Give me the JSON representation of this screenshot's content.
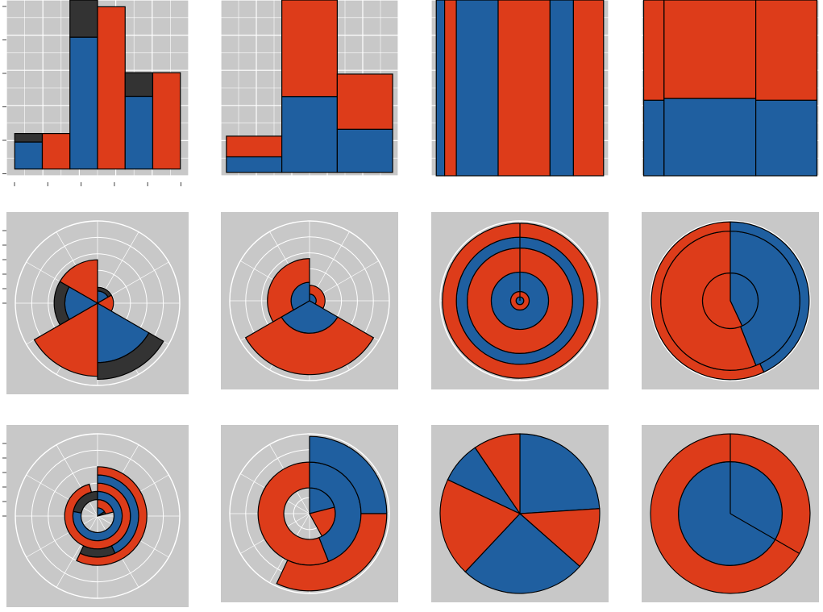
{
  "colors": {
    "red": "#dd3c1a",
    "blue": "#1f5fa0",
    "dark": "#333333",
    "panel": "#c8c8c8",
    "grid": "#ffffff"
  },
  "chart_data": [
    {
      "id": "hist-dodge",
      "type": "bar",
      "position": "dodge",
      "bars": [
        {
          "x0": 0,
          "x1": 1,
          "segs": [
            {
              "c": "blue",
              "v": 0.8
            },
            {
              "c": "dark",
              "v": 0.25
            }
          ]
        },
        {
          "x0": 1,
          "x1": 2,
          "segs": [
            {
              "c": "red",
              "v": 1.05
            }
          ]
        },
        {
          "x0": 2,
          "x1": 3,
          "segs": [
            {
              "c": "blue",
              "v": 3.9
            },
            {
              "c": "dark",
              "v": 1.1
            }
          ]
        },
        {
          "x0": 3,
          "x1": 4,
          "segs": [
            {
              "c": "red",
              "v": 4.8
            }
          ]
        },
        {
          "x0": 4,
          "x1": 5,
          "segs": [
            {
              "c": "blue",
              "v": 2.15
            },
            {
              "c": "dark",
              "v": 0.7
            }
          ]
        },
        {
          "x0": 5,
          "x1": 6,
          "segs": [
            {
              "c": "red",
              "v": 2.85
            }
          ]
        }
      ],
      "xlim": [
        -0.3,
        6.3
      ],
      "ylim": [
        -0.2,
        5.0
      ]
    },
    {
      "id": "hist-stack",
      "type": "bar",
      "position": "stack",
      "bars": [
        {
          "x0": 0,
          "x1": 1,
          "segs": [
            {
              "c": "blue",
              "v": 0.45
            },
            {
              "c": "red",
              "v": 0.6
            }
          ]
        },
        {
          "x0": 1,
          "x1": 2,
          "segs": [
            {
              "c": "blue",
              "v": 2.2
            },
            {
              "c": "red",
              "v": 2.8
            }
          ]
        },
        {
          "x0": 2,
          "x1": 3,
          "segs": [
            {
              "c": "blue",
              "v": 1.25
            },
            {
              "c": "red",
              "v": 1.6
            }
          ]
        }
      ],
      "xlim": [
        -0.1,
        3.1
      ],
      "ylim": [
        -0.1,
        5.0
      ]
    },
    {
      "id": "bar-fill-thin",
      "type": "bar",
      "position": "fill",
      "bars": [
        {
          "x0": 0.0,
          "x1": 0.5,
          "segs": [
            {
              "c": "blue",
              "v": 1
            }
          ]
        },
        {
          "x0": 0.5,
          "x1": 1.2,
          "segs": [
            {
              "c": "red",
              "v": 1
            }
          ]
        },
        {
          "x0": 1.2,
          "x1": 3.7,
          "segs": [
            {
              "c": "blue",
              "v": 1
            }
          ]
        },
        {
          "x0": 3.7,
          "x1": 6.8,
          "segs": [
            {
              "c": "red",
              "v": 1
            }
          ]
        },
        {
          "x0": 6.8,
          "x1": 8.2,
          "segs": [
            {
              "c": "blue",
              "v": 1
            }
          ]
        },
        {
          "x0": 8.2,
          "x1": 10.0,
          "segs": [
            {
              "c": "red",
              "v": 1
            }
          ]
        }
      ],
      "xlim": [
        -0.3,
        10.3
      ],
      "ylim": [
        0,
        1
      ]
    },
    {
      "id": "bar-fill-stack",
      "type": "bar",
      "position": "fill",
      "bars": [
        {
          "x0": 0,
          "x1": 1,
          "segs": [
            {
              "c": "blue",
              "v": 0.43
            },
            {
              "c": "red",
              "v": 0.57
            }
          ]
        },
        {
          "x0": 1,
          "x1": 5.5,
          "segs": [
            {
              "c": "blue",
              "v": 0.44
            },
            {
              "c": "red",
              "v": 0.56
            }
          ]
        },
        {
          "x0": 5.5,
          "x1": 8.5,
          "segs": [
            {
              "c": "blue",
              "v": 0.43
            },
            {
              "c": "red",
              "v": 0.57
            }
          ]
        }
      ],
      "xlim": [
        -0.1,
        8.6
      ],
      "ylim": [
        0,
        1
      ]
    },
    {
      "id": "coxcomb-dodge",
      "type": "pie",
      "rmax": 5.4,
      "wedges": [
        {
          "a0": 0,
          "a1": 0.1667,
          "segs": [
            {
              "c": "blue",
              "v": 0.8
            },
            {
              "c": "dark",
              "v": 0.25
            }
          ]
        },
        {
          "a0": 0.1667,
          "a1": 0.3333,
          "segs": [
            {
              "c": "red",
              "v": 1.05
            }
          ]
        },
        {
          "a0": 0.3333,
          "a1": 0.5,
          "segs": [
            {
              "c": "blue",
              "v": 3.9
            },
            {
              "c": "dark",
              "v": 1.1
            }
          ]
        },
        {
          "a0": 0.5,
          "a1": 0.6667,
          "segs": [
            {
              "c": "red",
              "v": 4.8
            }
          ]
        },
        {
          "a0": 0.6667,
          "a1": 0.8333,
          "segs": [
            {
              "c": "blue",
              "v": 2.15
            },
            {
              "c": "dark",
              "v": 0.7
            }
          ]
        },
        {
          "a0": 0.8333,
          "a1": 1.0,
          "segs": [
            {
              "c": "red",
              "v": 2.85
            }
          ]
        }
      ]
    },
    {
      "id": "coxcomb-stack",
      "type": "pie",
      "rmax": 5.4,
      "wedges": [
        {
          "a0": 0,
          "a1": 0.3333,
          "segs": [
            {
              "c": "blue",
              "v": 0.45
            },
            {
              "c": "red",
              "v": 0.6
            }
          ]
        },
        {
          "a0": 0.3333,
          "a1": 0.6667,
          "segs": [
            {
              "c": "blue",
              "v": 2.2
            },
            {
              "c": "red",
              "v": 2.8
            }
          ]
        },
        {
          "a0": 0.6667,
          "a1": 1.0,
          "segs": [
            {
              "c": "blue",
              "v": 1.25
            },
            {
              "c": "red",
              "v": 1.6
            }
          ]
        }
      ]
    },
    {
      "id": "bullseye-thin",
      "type": "pie",
      "rmax": 10.3,
      "dividers": "single",
      "rings": [
        {
          "r0": 0.0,
          "r1": 0.5,
          "segs": [
            {
              "c": "blue",
              "v": 1
            }
          ]
        },
        {
          "r0": 0.5,
          "r1": 1.2,
          "segs": [
            {
              "c": "red",
              "v": 1
            }
          ]
        },
        {
          "r0": 1.2,
          "r1": 3.7,
          "segs": [
            {
              "c": "blue",
              "v": 1
            }
          ]
        },
        {
          "r0": 3.7,
          "r1": 6.8,
          "segs": [
            {
              "c": "red",
              "v": 1
            }
          ]
        },
        {
          "r0": 6.8,
          "r1": 8.2,
          "segs": [
            {
              "c": "blue",
              "v": 1
            }
          ]
        },
        {
          "r0": 8.2,
          "r1": 10.0,
          "segs": [
            {
              "c": "red",
              "v": 1
            }
          ]
        }
      ]
    },
    {
      "id": "bullseye-fill",
      "type": "pie",
      "rmax": 8.6,
      "rings": [
        {
          "r0": 0,
          "r1": 3.0,
          "segs": [
            {
              "c": "blue",
              "v": 0.43
            },
            {
              "c": "red",
              "v": 0.57
            }
          ]
        },
        {
          "r0": 3.0,
          "r1": 7.5,
          "segs": [
            {
              "c": "blue",
              "v": 0.44
            },
            {
              "c": "red",
              "v": 0.56
            }
          ]
        },
        {
          "r0": 7.5,
          "r1": 8.5,
          "segs": [
            {
              "c": "blue",
              "v": 0.43
            },
            {
              "c": "red",
              "v": 0.57
            }
          ]
        }
      ]
    },
    {
      "id": "spiral-dodge",
      "type": "pie",
      "rmax": 5.0,
      "rings": [
        {
          "r0": 0.0,
          "r1": 0.5,
          "segs": [
            {
              "c": "blue",
              "v": 0.16
            },
            {
              "c": "dark",
              "v": 0.05
            }
          ]
        },
        {
          "r0": 0.5,
          "r1": 1.0,
          "segs": [
            {
              "c": "red",
              "v": 0.21
            }
          ]
        },
        {
          "r0": 1.0,
          "r1": 1.5,
          "segs": [
            {
              "c": "blue",
              "v": 0.78
            },
            {
              "c": "dark",
              "v": 0.22
            }
          ]
        },
        {
          "r0": 1.5,
          "r1": 2.0,
          "segs": [
            {
              "c": "red",
              "v": 0.96
            }
          ]
        },
        {
          "r0": 2.0,
          "r1": 2.5,
          "segs": [
            {
              "c": "blue",
              "v": 0.43
            },
            {
              "c": "dark",
              "v": 0.14
            }
          ]
        },
        {
          "r0": 2.5,
          "r1": 3.0,
          "segs": [
            {
              "c": "red",
              "v": 0.57
            }
          ]
        }
      ]
    },
    {
      "id": "spiral-stack",
      "type": "pie",
      "rmax": 3.1,
      "rings": [
        {
          "r0": 0,
          "r1": 1,
          "segs": [
            {
              "c": "blue",
              "v": 0.21
            },
            {
              "c": "red",
              "v": 0.21
            }
          ]
        },
        {
          "r0": 1,
          "r1": 2,
          "segs": [
            {
              "c": "blue",
              "v": 0.44
            },
            {
              "c": "red",
              "v": 0.56
            }
          ]
        },
        {
          "r0": 2,
          "r1": 3,
          "segs": [
            {
              "c": "blue",
              "v": 0.25
            },
            {
              "c": "red",
              "v": 0.32
            }
          ]
        }
      ]
    },
    {
      "id": "pie-thin",
      "type": "pie",
      "rmax": 1.0,
      "wedges": [
        {
          "a0": 0.0,
          "a1": 0.24,
          "segs": [
            {
              "c": "blue",
              "v": 1
            }
          ]
        },
        {
          "a0": 0.24,
          "a1": 0.365,
          "segs": [
            {
              "c": "red",
              "v": 1
            }
          ]
        },
        {
          "a0": 0.365,
          "a1": 0.62,
          "segs": [
            {
              "c": "blue",
              "v": 1
            }
          ]
        },
        {
          "a0": 0.62,
          "a1": 0.82,
          "segs": [
            {
              "c": "red",
              "v": 1
            }
          ]
        },
        {
          "a0": 0.82,
          "a1": 0.905,
          "segs": [
            {
              "c": "blue",
              "v": 1
            }
          ]
        },
        {
          "a0": 0.905,
          "a1": 1.0,
          "segs": [
            {
              "c": "red",
              "v": 1
            }
          ]
        }
      ]
    },
    {
      "id": "pie-fill-ring",
      "type": "pie",
      "rmax": 1.0,
      "rings": [
        {
          "r0": 0,
          "r1": 0.65,
          "whole": "blue",
          "radial": [
            0,
            0.3333
          ]
        },
        {
          "r0": 0.65,
          "r1": 1.0,
          "whole": "red",
          "radial": [
            0,
            0.3333
          ]
        }
      ]
    }
  ]
}
